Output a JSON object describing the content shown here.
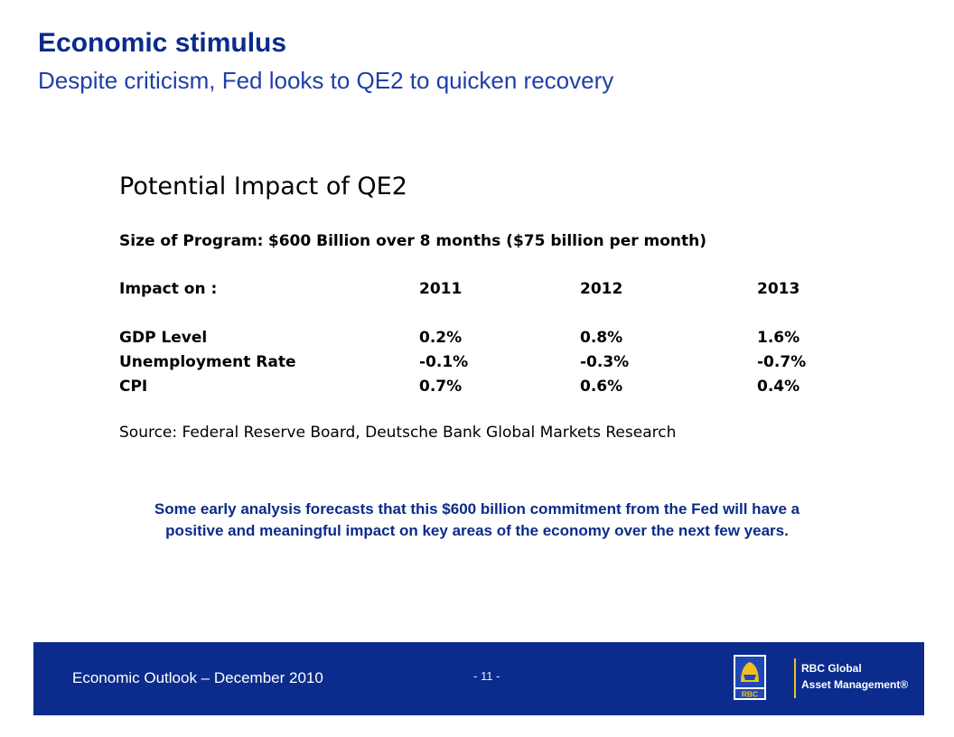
{
  "header": {
    "title": "Economic stimulus",
    "subtitle": "Despite criticism, Fed looks to QE2 to quicken recovery"
  },
  "exhibit": {
    "title": "Potential Impact of QE2",
    "program_label": "Size of Program:",
    "program_value": "$600 Billion over 8 months ($75 billion per month)",
    "columns": {
      "label": "Impact on :",
      "y1": "2011",
      "y2": "2012",
      "y3": "2013"
    },
    "rows": [
      {
        "label": "GDP Level",
        "y1": "0.2%",
        "y2": "0.8%",
        "y3": "1.6%"
      },
      {
        "label": "Unemployment Rate",
        "y1": "-0.1%",
        "y2": "-0.3%",
        "y3": "-0.7%"
      },
      {
        "label": "CPI",
        "y1": "0.7%",
        "y2": "0.6%",
        "y3": "0.4%"
      }
    ],
    "source": "Source: Federal Reserve Board, Deutsche Bank Global Markets Research"
  },
  "note": {
    "line1": "Some early analysis forecasts that this $600 billion commitment from the Fed will have a",
    "line2": "positive and meaningful impact on key areas of the economy over the next few years."
  },
  "footer": {
    "left_text": "Economic Outlook – December 2010",
    "page_number": "- 11 -",
    "brand_line1": "RBC Global",
    "brand_line2": "Asset Management®",
    "logo_text": "RBC",
    "colors": {
      "band": "#0b2c8c",
      "logo_gold": "#f0c020",
      "logo_blue": "#1f47b8"
    }
  }
}
